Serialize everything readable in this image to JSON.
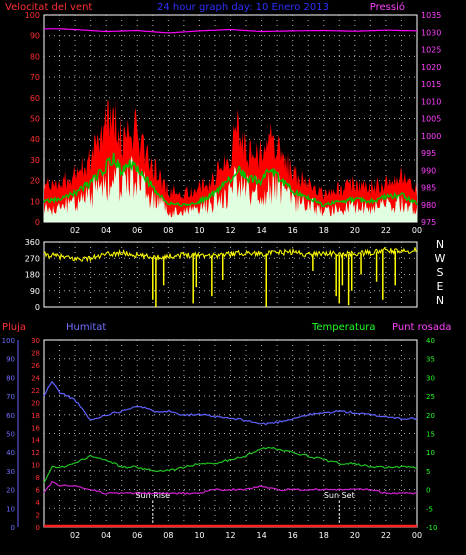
{
  "colors": {
    "background": "#000000",
    "axis": "#ffffff",
    "grid": "#b0b0b0",
    "gust": "#ff0000",
    "avg": "#00c000",
    "wind": "#e0ffe0",
    "pressure": "#ff00ff",
    "direction": "#ffff00",
    "humidity": "#6060ff",
    "temperature": "#20c020",
    "dewpoint": "#d020d0",
    "rain": "#ff2020",
    "title": "#3030ff",
    "left_label": "#ff3030",
    "right_label": "#ff40ff",
    "hum_label": "#7070ff",
    "temp_label": "#20ff20",
    "sun": "#ffffff"
  },
  "chart_data": [
    {
      "type": "area",
      "title": "24 hour graph day: 10 Enero 2013",
      "left_label": "Velocitat del vent",
      "right_label": "Pressió",
      "x_ticks": [
        "02",
        "04",
        "06",
        "08",
        "10",
        "12",
        "14",
        "16",
        "18",
        "20",
        "22",
        "00"
      ],
      "left_axis": {
        "min": 0,
        "max": 100,
        "ticks": [
          0,
          10,
          20,
          30,
          40,
          50,
          60,
          70,
          80,
          90,
          100
        ]
      },
      "right_axis": {
        "min": 975,
        "max": 1035,
        "ticks": [
          975,
          980,
          985,
          990,
          995,
          1000,
          1005,
          1010,
          1015,
          1020,
          1025,
          1030,
          1035
        ]
      },
      "series": [
        {
          "role": "gust",
          "x": [
            0,
            1,
            2,
            3,
            4,
            4.5,
            5,
            5.5,
            6,
            7,
            8,
            9,
            10,
            11,
            12,
            12.5,
            13,
            14,
            14.5,
            15,
            16,
            17,
            18,
            19,
            20,
            21,
            22,
            23,
            24
          ],
          "values": [
            17,
            18,
            24,
            30,
            48,
            52,
            40,
            45,
            44,
            28,
            15,
            14,
            16,
            22,
            34,
            46,
            34,
            32,
            40,
            36,
            24,
            20,
            13,
            16,
            18,
            17,
            20,
            22,
            15
          ]
        },
        {
          "role": "avg",
          "x": [
            0,
            1,
            2,
            3,
            4,
            4.5,
            5,
            5.5,
            6,
            7,
            8,
            9,
            10,
            11,
            12,
            12.5,
            13,
            14,
            14.5,
            15,
            16,
            17,
            18,
            19,
            20,
            21,
            22,
            23,
            24
          ],
          "values": [
            10,
            11,
            14,
            19,
            27,
            31,
            24,
            28,
            26,
            17,
            9,
            8,
            10,
            14,
            21,
            27,
            21,
            20,
            25,
            22,
            15,
            12,
            8,
            10,
            11,
            10,
            12,
            13,
            9
          ]
        },
        {
          "role": "wind",
          "x": [
            0,
            1,
            2,
            3,
            4,
            4.5,
            5,
            5.5,
            6,
            7,
            8,
            9,
            10,
            11,
            12,
            12.5,
            13,
            14,
            14.5,
            15,
            16,
            17,
            18,
            19,
            20,
            21,
            22,
            23,
            24
          ],
          "values": [
            7,
            8,
            10,
            14,
            21,
            24,
            18,
            22,
            20,
            13,
            6,
            5,
            7,
            10,
            16,
            21,
            16,
            15,
            19,
            17,
            11,
            9,
            5,
            7,
            8,
            7,
            9,
            10,
            6
          ]
        },
        {
          "role": "pressure",
          "x": [
            0,
            1,
            2,
            4,
            6,
            8,
            10,
            12,
            14,
            16,
            18,
            20,
            22,
            24
          ],
          "values": [
            1031,
            1031,
            1030.8,
            1030.2,
            1030.5,
            1029.8,
            1030.4,
            1030.8,
            1030.2,
            1030.4,
            1030.5,
            1030.3,
            1030.6,
            1030.4
          ]
        }
      ]
    },
    {
      "type": "line",
      "right_label_letters": [
        "N",
        "W",
        "S",
        "E",
        "N"
      ],
      "left_axis": {
        "min": 0,
        "max": 360,
        "ticks": [
          0,
          90,
          180,
          270,
          360
        ]
      },
      "series": [
        {
          "role": "direction",
          "x": [
            0,
            1,
            2,
            3,
            4,
            5,
            6,
            7,
            8,
            9,
            10,
            11,
            12,
            13,
            14,
            15,
            16,
            17,
            18,
            19,
            20,
            21,
            22,
            23,
            24
          ],
          "values": [
            290,
            280,
            265,
            270,
            290,
            300,
            285,
            275,
            280,
            290,
            290,
            285,
            295,
            300,
            295,
            300,
            305,
            290,
            300,
            290,
            295,
            300,
            315,
            305,
            320
          ]
        }
      ],
      "dips": [
        {
          "x": 7.0,
          "to": 40
        },
        {
          "x": 7.2,
          "to": 0
        },
        {
          "x": 7.7,
          "to": 120
        },
        {
          "x": 9.6,
          "to": 20
        },
        {
          "x": 9.8,
          "to": 110
        },
        {
          "x": 10.8,
          "to": 60
        },
        {
          "x": 11.5,
          "to": 150
        },
        {
          "x": 14.3,
          "to": 0
        },
        {
          "x": 17.3,
          "to": 200
        },
        {
          "x": 18.8,
          "to": 60
        },
        {
          "x": 19.0,
          "to": 20
        },
        {
          "x": 19.2,
          "to": 120
        },
        {
          "x": 19.6,
          "to": 10
        },
        {
          "x": 19.8,
          "to": 90
        },
        {
          "x": 20.4,
          "to": 180
        },
        {
          "x": 21.4,
          "to": 140
        },
        {
          "x": 21.8,
          "to": 40
        },
        {
          "x": 22.6,
          "to": 120
        }
      ]
    },
    {
      "type": "line",
      "left_labels": {
        "rain": "Pluja",
        "humidity": "Humitat"
      },
      "right_labels": {
        "temperature": "Temperatura",
        "dewpoint": "Punt rosada"
      },
      "x_ticks": [
        "02",
        "04",
        "06",
        "08",
        "10",
        "12",
        "14",
        "16",
        "18",
        "20",
        "22",
        "00"
      ],
      "hum_axis": {
        "min": 0,
        "max": 100,
        "ticks": [
          0,
          10,
          20,
          30,
          40,
          50,
          60,
          70,
          80,
          90,
          100
        ]
      },
      "rain_axis": {
        "min": 0,
        "max": 30,
        "ticks": [
          0,
          2,
          4,
          6,
          8,
          10,
          12,
          14,
          16,
          18,
          20,
          22,
          24,
          26,
          28,
          30
        ]
      },
      "temp_axis": {
        "min": -10,
        "max": 40,
        "ticks": [
          -10,
          -5,
          0,
          5,
          10,
          15,
          20,
          25,
          30,
          35,
          40
        ]
      },
      "annotations": [
        {
          "x": 7.0,
          "label": "Sun Rise"
        },
        {
          "x": 19.0,
          "label": "Sun Set"
        }
      ],
      "series": [
        {
          "role": "humidity",
          "x": [
            0,
            0.5,
            1,
            2,
            3,
            4,
            5,
            6,
            7,
            8,
            9,
            10,
            11,
            12,
            13,
            14,
            15,
            16,
            17,
            18,
            19,
            20,
            21,
            22,
            23,
            24
          ],
          "values": [
            70,
            78,
            72,
            68,
            57,
            60,
            62,
            65,
            62,
            62,
            60,
            60,
            59,
            58,
            57,
            55,
            56,
            58,
            60,
            61,
            62,
            61,
            60,
            59,
            58,
            58
          ]
        },
        {
          "role": "temperature",
          "x": [
            0,
            0.5,
            1,
            2,
            3,
            4,
            5,
            6,
            7,
            8,
            9,
            10,
            11,
            12,
            13,
            14,
            15,
            16,
            17,
            18,
            19,
            20,
            21,
            22,
            23,
            24
          ],
          "values": [
            2,
            6,
            6,
            7,
            9,
            8,
            6,
            6,
            5,
            5,
            6,
            7,
            7,
            8,
            9,
            11,
            11,
            10,
            9,
            8,
            7,
            7,
            6,
            6,
            6,
            6
          ]
        },
        {
          "role": "dewpoint",
          "x": [
            0,
            0.5,
            1,
            2,
            3,
            4,
            5,
            6,
            7,
            8,
            9,
            10,
            11,
            12,
            13,
            14,
            15,
            16,
            17,
            18,
            19,
            20,
            21,
            22,
            23,
            24
          ],
          "values": [
            -1,
            2,
            1,
            1,
            0,
            -1,
            -1,
            -1,
            -1,
            -1,
            -1,
            -1,
            0,
            0,
            0,
            1,
            0,
            0,
            0,
            0,
            0,
            0,
            0,
            -1,
            -1,
            -1
          ]
        },
        {
          "role": "rain",
          "x": [
            0,
            24
          ],
          "values": [
            0,
            0
          ]
        }
      ]
    }
  ]
}
